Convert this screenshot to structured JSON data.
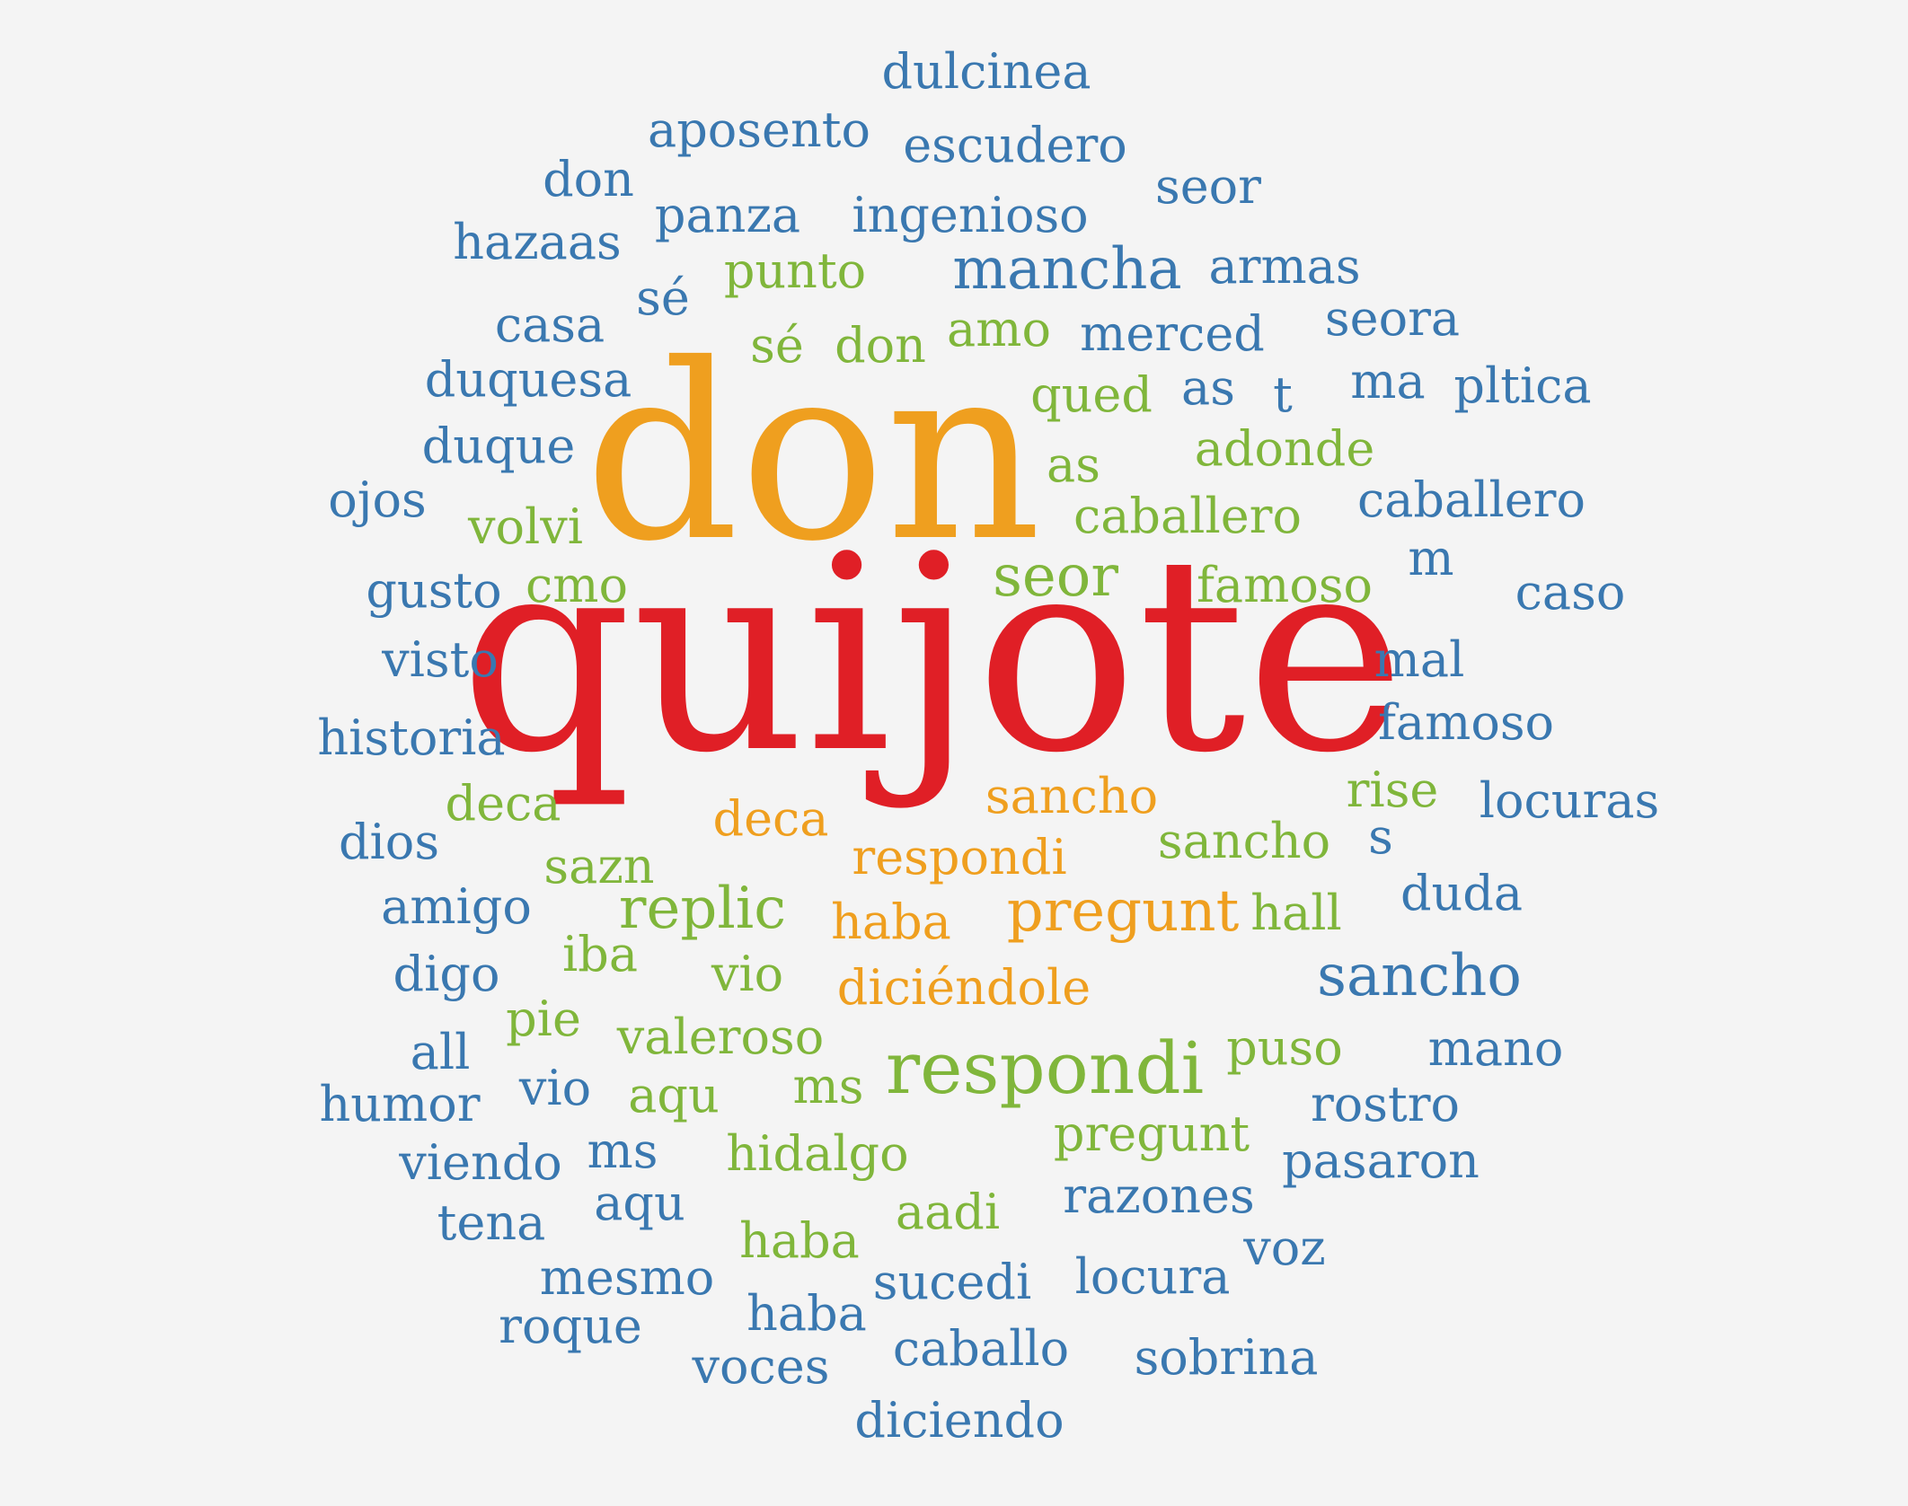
{
  "palette": {
    "blue": "#3a78b0",
    "green": "#80b63b",
    "orange": "#ef9f1f",
    "red": "#e01f26",
    "background": "#f4f4f4"
  },
  "words": [
    {
      "text": "dulcinea",
      "color": "blue"
    },
    {
      "text": "aposento",
      "color": "blue"
    },
    {
      "text": "escudero",
      "color": "blue"
    },
    {
      "text": "don",
      "color": "blue"
    },
    {
      "text": "seor",
      "color": "blue"
    },
    {
      "text": "panza",
      "color": "blue"
    },
    {
      "text": "ingenioso",
      "color": "blue"
    },
    {
      "text": "hazaas",
      "color": "blue"
    },
    {
      "text": "punto",
      "color": "green"
    },
    {
      "text": "mancha",
      "color": "blue"
    },
    {
      "text": "armas",
      "color": "blue"
    },
    {
      "text": "sé",
      "color": "blue"
    },
    {
      "text": "casa",
      "color": "blue"
    },
    {
      "text": "amo",
      "color": "green"
    },
    {
      "text": "merced",
      "color": "blue"
    },
    {
      "text": "seora",
      "color": "blue"
    },
    {
      "text": "sé",
      "color": "green"
    },
    {
      "text": "don",
      "color": "green"
    },
    {
      "text": "duquesa",
      "color": "blue"
    },
    {
      "text": "ma",
      "color": "blue"
    },
    {
      "text": "pltica",
      "color": "blue"
    },
    {
      "text": "qued",
      "color": "green"
    },
    {
      "text": "as",
      "color": "blue"
    },
    {
      "text": "t",
      "color": "blue"
    },
    {
      "text": "don",
      "color": "orange"
    },
    {
      "text": "duque",
      "color": "blue"
    },
    {
      "text": "adonde",
      "color": "green"
    },
    {
      "text": "as",
      "color": "green"
    },
    {
      "text": "ojos",
      "color": "blue"
    },
    {
      "text": "caballero",
      "color": "blue"
    },
    {
      "text": "volvi",
      "color": "green"
    },
    {
      "text": "caballero",
      "color": "green"
    },
    {
      "text": "m",
      "color": "blue"
    },
    {
      "text": "seor",
      "color": "green"
    },
    {
      "text": "gusto",
      "color": "blue"
    },
    {
      "text": "cmo",
      "color": "green"
    },
    {
      "text": "famoso",
      "color": "green"
    },
    {
      "text": "caso",
      "color": "blue"
    },
    {
      "text": "quijote",
      "color": "red"
    },
    {
      "text": "visto",
      "color": "blue"
    },
    {
      "text": "mal",
      "color": "blue"
    },
    {
      "text": "famoso",
      "color": "blue"
    },
    {
      "text": "historia",
      "color": "blue"
    },
    {
      "text": "rise",
      "color": "green"
    },
    {
      "text": "locuras",
      "color": "blue"
    },
    {
      "text": "sancho",
      "color": "orange"
    },
    {
      "text": "deca",
      "color": "green"
    },
    {
      "text": "deca",
      "color": "orange"
    },
    {
      "text": "dios",
      "color": "blue"
    },
    {
      "text": "sancho",
      "color": "green"
    },
    {
      "text": "s",
      "color": "blue"
    },
    {
      "text": "respondi",
      "color": "orange"
    },
    {
      "text": "sazn",
      "color": "green"
    },
    {
      "text": "duda",
      "color": "blue"
    },
    {
      "text": "amigo",
      "color": "blue"
    },
    {
      "text": "replic",
      "color": "green"
    },
    {
      "text": "pregunt",
      "color": "orange"
    },
    {
      "text": "hall",
      "color": "green"
    },
    {
      "text": "haba",
      "color": "orange"
    },
    {
      "text": "iba",
      "color": "green"
    },
    {
      "text": "digo",
      "color": "blue"
    },
    {
      "text": "vio",
      "color": "green"
    },
    {
      "text": "sancho",
      "color": "blue"
    },
    {
      "text": "diciéndole",
      "color": "orange"
    },
    {
      "text": "pie",
      "color": "green"
    },
    {
      "text": "valeroso",
      "color": "green"
    },
    {
      "text": "puso",
      "color": "green"
    },
    {
      "text": "mano",
      "color": "blue"
    },
    {
      "text": "all",
      "color": "blue"
    },
    {
      "text": "respondi",
      "color": "green"
    },
    {
      "text": "humor",
      "color": "blue"
    },
    {
      "text": "vio",
      "color": "blue"
    },
    {
      "text": "aqu",
      "color": "green"
    },
    {
      "text": "ms",
      "color": "green"
    },
    {
      "text": "rostro",
      "color": "blue"
    },
    {
      "text": "pregunt",
      "color": "green"
    },
    {
      "text": "viendo",
      "color": "blue"
    },
    {
      "text": "ms",
      "color": "blue"
    },
    {
      "text": "hidalgo",
      "color": "green"
    },
    {
      "text": "pasaron",
      "color": "blue"
    },
    {
      "text": "razones",
      "color": "blue"
    },
    {
      "text": "aqu",
      "color": "blue"
    },
    {
      "text": "tena",
      "color": "blue"
    },
    {
      "text": "aadi",
      "color": "green"
    },
    {
      "text": "haba",
      "color": "green"
    },
    {
      "text": "voz",
      "color": "blue"
    },
    {
      "text": "mesmo",
      "color": "blue"
    },
    {
      "text": "locura",
      "color": "blue"
    },
    {
      "text": "sucedi",
      "color": "blue"
    },
    {
      "text": "roque",
      "color": "blue"
    },
    {
      "text": "haba",
      "color": "blue"
    },
    {
      "text": "caballo",
      "color": "blue"
    },
    {
      "text": "sobrina",
      "color": "blue"
    },
    {
      "text": "voces",
      "color": "blue"
    },
    {
      "text": "diciendo",
      "color": "blue"
    }
  ]
}
